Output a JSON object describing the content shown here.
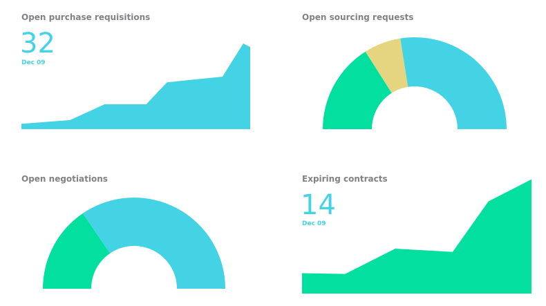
{
  "chart_data": [
    {
      "type": "area",
      "title": "Open purchase requisitions",
      "headline": 32,
      "date": "Dec 09",
      "x": [
        0,
        7,
        12,
        18,
        21,
        29,
        32,
        33
      ],
      "values": [
        2,
        3.4,
        9.3,
        9.3,
        17.5,
        19.6,
        32,
        30.7
      ],
      "xlim": [
        0,
        33
      ],
      "ylim": [
        0,
        40
      ],
      "color": "#43d3e4"
    },
    {
      "type": "donut",
      "title": "Open sourcing requests",
      "values": [
        32,
        13,
        55
      ],
      "colors": [
        "#02df9e",
        "#e5d581",
        "#43d3e4"
      ]
    },
    {
      "type": "donut",
      "title": "Open negotiations",
      "values": [
        31,
        69
      ],
      "colors": [
        "#02df9e",
        "#43d3e4"
      ]
    },
    {
      "type": "area",
      "title": "Expiring contracts",
      "headline": 14,
      "date": "Dec 09",
      "x": [
        0,
        6,
        13,
        21,
        26,
        32
      ],
      "values": [
        2.5,
        2.4,
        5.5,
        5.1,
        11.3,
        14
      ],
      "xlim": [
        0,
        32
      ],
      "ylim": [
        0,
        16
      ],
      "color": "#02df9e"
    }
  ]
}
